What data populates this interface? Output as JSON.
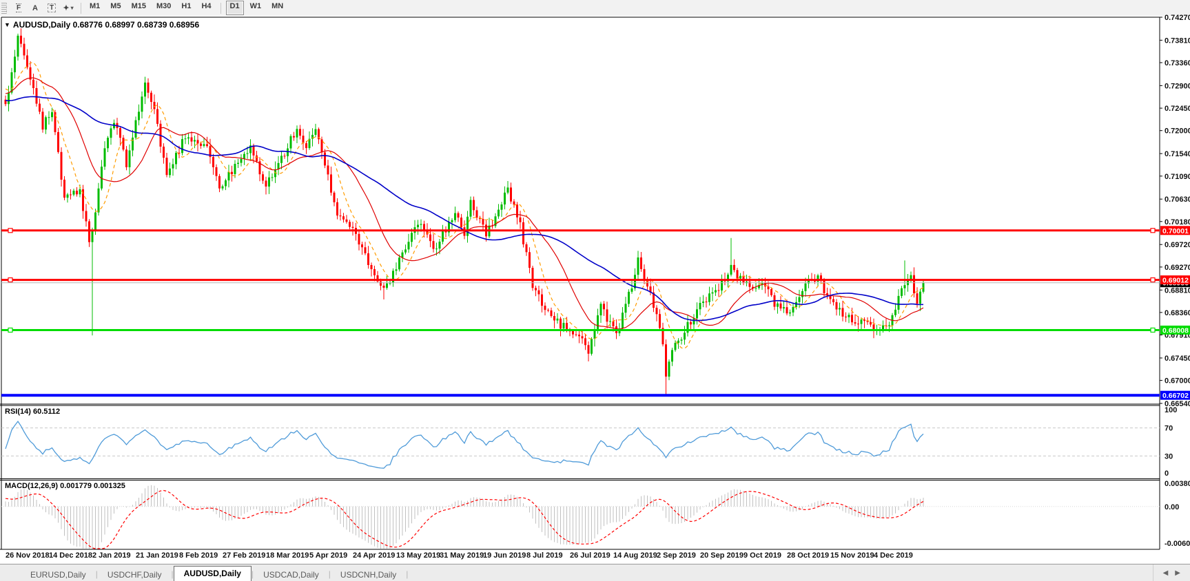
{
  "toolbar": {
    "tools": [
      {
        "name": "fibonacci-retracement-icon",
        "glyph": "F",
        "style": "fibo"
      },
      {
        "name": "text-label-icon",
        "glyph": "A",
        "style": "plain"
      },
      {
        "name": "text-icon",
        "glyph": "T",
        "style": "textbox"
      },
      {
        "name": "arrows-icon",
        "glyph": "✦",
        "style": "arrows",
        "caret": "▾"
      }
    ],
    "timeframes": [
      {
        "label": "M1",
        "active": false
      },
      {
        "label": "M5",
        "active": false
      },
      {
        "label": "M15",
        "active": false
      },
      {
        "label": "M30",
        "active": false
      },
      {
        "label": "H1",
        "active": false
      },
      {
        "label": "H4",
        "active": false
      },
      {
        "label": "D1",
        "active": true
      },
      {
        "label": "W1",
        "active": false
      },
      {
        "label": "MN",
        "active": false
      }
    ]
  },
  "chart": {
    "title_marker": "▼",
    "title_text": "AUDUSD,Daily  0.68776 0.68997 0.68739 0.68956",
    "price_axis": {
      "max": 0.7427,
      "min": 0.6654,
      "ticks": [
        "0.74270",
        "0.73810",
        "0.73360",
        "0.72900",
        "0.72450",
        "0.72000",
        "0.71540",
        "0.71090",
        "0.70630",
        "0.70180",
        "0.69720",
        "0.69270",
        "0.68810",
        "0.68360",
        "0.67910",
        "0.67450",
        "0.67000",
        "0.66540"
      ]
    },
    "hlines": [
      {
        "price": 0.70001,
        "label": "0.70001",
        "color": "#ff0000",
        "thick": 3,
        "markers": true
      },
      {
        "price": 0.69012,
        "label": "0.69012",
        "color": "#ff0000",
        "thick": 3,
        "markers": true
      },
      {
        "price": 0.68008,
        "label": "0.68008",
        "color": "#00dc00",
        "thick": 3,
        "markers": true
      },
      {
        "price": 0.66702,
        "label": "0.66702",
        "color": "#0000ff",
        "thick": 4,
        "markers": false
      }
    ],
    "current_price": {
      "value": 0.68956,
      "label": "0.68956",
      "line_color": "#b6b6b6",
      "label_bg": "#000000"
    },
    "date_axis": {
      "step_candles": 14,
      "labels": [
        "26 Nov 2018",
        "14 Dec 2018",
        "2 Jan 2019",
        "21 Jan 2019",
        "8 Feb 2019",
        "27 Feb 2019",
        "18 Mar 2019",
        "5 Apr 2019",
        "24 Apr 2019",
        "13 May 2019",
        "31 May 2019",
        "19 Jun 2019",
        "8 Jul 2019",
        "26 Jul 2019",
        "14 Aug 2019",
        "2 Sep 2019",
        "20 Sep 2019",
        "9 Oct 2019",
        "28 Oct 2019",
        "15 Nov 2019",
        "4 Dec 2019"
      ]
    },
    "colors": {
      "bull": "#00bc00",
      "bear": "#ff0000",
      "ma_fast": "#ff9c00",
      "ma_mid": "#e00000",
      "ma_slow": "#0000c8",
      "rsi": "#4f9bd9",
      "macd_hist": "#c0c0c0",
      "macd_signal": "#ff0000",
      "level_dash": "#c8c8c8",
      "axis_text": "#111111"
    }
  },
  "indicators": {
    "rsi": {
      "label": "RSI(14) 60.5112",
      "period": 14,
      "value": 60.5112,
      "overbought": 70,
      "oversold": 30,
      "axis_labels": [
        "100",
        "70",
        "30",
        "0"
      ]
    },
    "macd": {
      "label": "MACD(12,26,9) 0.001779 0.001325",
      "fast": 12,
      "slow": 26,
      "signal": 9,
      "main_value": 0.001779,
      "signal_value": 0.001325,
      "axis_max": 0.003804,
      "axis_zero_label": "0.00",
      "axis_min": -0.006087,
      "axis_labels": [
        "0.003804",
        "0.00",
        "-0.006087"
      ]
    }
  },
  "chart_data": {
    "type": "candlestick",
    "symbol": "AUDUSD",
    "timeframe": "Daily",
    "candles_count": 297,
    "last_candle": {
      "open": 0.68776,
      "high": 0.68997,
      "low": 0.68739,
      "close": 0.68956
    },
    "close_path": [
      [
        0,
        0.7255
      ],
      [
        2,
        0.731
      ],
      [
        4,
        0.739
      ],
      [
        7,
        0.7335
      ],
      [
        12,
        0.721
      ],
      [
        15,
        0.724
      ],
      [
        19,
        0.706
      ],
      [
        24,
        0.708
      ],
      [
        27,
        0.6975
      ],
      [
        28,
        0.6998
      ],
      [
        32,
        0.7165
      ],
      [
        35,
        0.722
      ],
      [
        39,
        0.7135
      ],
      [
        45,
        0.7295
      ],
      [
        48,
        0.724
      ],
      [
        52,
        0.711
      ],
      [
        58,
        0.719
      ],
      [
        65,
        0.717
      ],
      [
        69,
        0.7085
      ],
      [
        75,
        0.7135
      ],
      [
        79,
        0.7165
      ],
      [
        84,
        0.709
      ],
      [
        87,
        0.712
      ],
      [
        94,
        0.7205
      ],
      [
        97,
        0.7165
      ],
      [
        100,
        0.72
      ],
      [
        107,
        0.7035
      ],
      [
        112,
        0.7005
      ],
      [
        116,
        0.695
      ],
      [
        122,
        0.688
      ],
      [
        126,
        0.6925
      ],
      [
        131,
        0.699
      ],
      [
        134,
        0.702
      ],
      [
        138,
        0.696
      ],
      [
        142,
        0.7
      ],
      [
        145,
        0.704
      ],
      [
        148,
        0.6995
      ],
      [
        150,
        0.706
      ],
      [
        155,
        0.699
      ],
      [
        162,
        0.7085
      ],
      [
        166,
        0.701
      ],
      [
        170,
        0.689
      ],
      [
        175,
        0.6835
      ],
      [
        179,
        0.681
      ],
      [
        184,
        0.6795
      ],
      [
        188,
        0.676
      ],
      [
        192,
        0.6845
      ],
      [
        197,
        0.679
      ],
      [
        202,
        0.689
      ],
      [
        204,
        0.694
      ],
      [
        208,
        0.688
      ],
      [
        212,
        0.677
      ],
      [
        213,
        0.6705
      ],
      [
        215,
        0.676
      ],
      [
        218,
        0.679
      ],
      [
        223,
        0.684
      ],
      [
        227,
        0.687
      ],
      [
        232,
        0.69
      ],
      [
        234,
        0.6925
      ],
      [
        238,
        0.6895
      ],
      [
        242,
        0.688
      ],
      [
        245,
        0.6895
      ],
      [
        248,
        0.6855
      ],
      [
        253,
        0.683
      ],
      [
        256,
        0.687
      ],
      [
        259,
        0.6895
      ],
      [
        262,
        0.6905
      ],
      [
        266,
        0.686
      ],
      [
        270,
        0.683
      ],
      [
        274,
        0.682
      ],
      [
        278,
        0.681
      ],
      [
        282,
        0.68
      ],
      [
        285,
        0.6805
      ],
      [
        287,
        0.684
      ],
      [
        289,
        0.6885
      ],
      [
        290,
        0.689
      ],
      [
        291,
        0.69
      ],
      [
        292,
        0.691
      ],
      [
        293,
        0.6875
      ],
      [
        294,
        0.6855
      ],
      [
        295,
        0.68776
      ],
      [
        296,
        0.68956
      ]
    ],
    "special_wicks": [
      {
        "i": 4,
        "high": 0.7394
      },
      {
        "i": 28,
        "low": 0.679
      },
      {
        "i": 122,
        "low": 0.6862
      },
      {
        "i": 188,
        "low": 0.6738
      },
      {
        "i": 213,
        "low": 0.66702
      },
      {
        "i": 234,
        "high": 0.6985
      },
      {
        "i": 290,
        "high": 0.694
      }
    ],
    "moving_averages": [
      {
        "period": 8,
        "color_key": "ma_fast",
        "style": "dash"
      },
      {
        "period": 20,
        "color_key": "ma_mid",
        "style": "solid"
      },
      {
        "period": 50,
        "color_key": "ma_slow",
        "style": "solid"
      }
    ]
  },
  "tabs": {
    "items": [
      {
        "label": "EURUSD,Daily",
        "active": false
      },
      {
        "label": "USDCHF,Daily",
        "active": false
      },
      {
        "label": "AUDUSD,Daily",
        "active": true
      },
      {
        "label": "USDCAD,Daily",
        "active": false
      },
      {
        "label": "USDCNH,Daily",
        "active": false
      }
    ],
    "nav_left": "◀",
    "nav_right": "▶"
  }
}
